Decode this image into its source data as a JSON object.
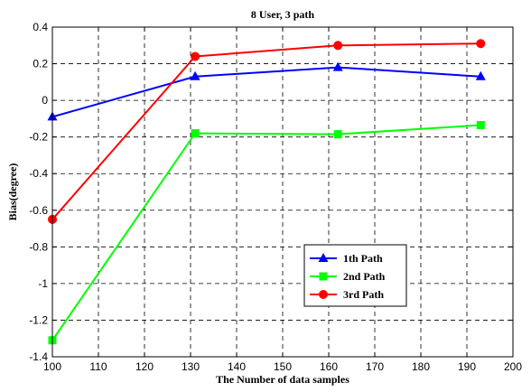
{
  "chart_data": {
    "type": "line",
    "title": "8 User, 3 path",
    "xlabel": "The Number of data samples",
    "ylabel": "Bias(degree)",
    "xlim": [
      100,
      200
    ],
    "ylim": [
      -1.4,
      0.4
    ],
    "xticks": [
      100,
      110,
      120,
      130,
      140,
      150,
      160,
      170,
      180,
      190,
      200
    ],
    "yticks": [
      -1.4,
      -1.2,
      -1,
      -0.8,
      -0.6,
      -0.4,
      -0.2,
      0,
      0.2,
      0.4
    ],
    "ytick_labels": [
      "-1.4",
      "-1.2",
      "-1",
      "-0.8",
      "-0.6",
      "-0.4",
      "-0.2",
      "0",
      "0.2",
      "0.4"
    ],
    "grid": true,
    "legend_position": "lower-right",
    "series": [
      {
        "name": "1th Path",
        "color": "#0000ff",
        "marker": "triangle",
        "x": [
          100,
          131,
          162,
          193
        ],
        "y": [
          -0.09,
          0.13,
          0.18,
          0.13
        ]
      },
      {
        "name": "2nd Path",
        "color": "#00ff00",
        "marker": "square",
        "x": [
          100,
          131,
          162,
          193
        ],
        "y": [
          -1.31,
          -0.18,
          -0.185,
          -0.135
        ]
      },
      {
        "name": "3rd Path",
        "color": "#ff0000",
        "marker": "circle",
        "x": [
          100,
          131,
          162,
          193
        ],
        "y": [
          -0.65,
          0.24,
          0.3,
          0.31
        ]
      }
    ]
  }
}
